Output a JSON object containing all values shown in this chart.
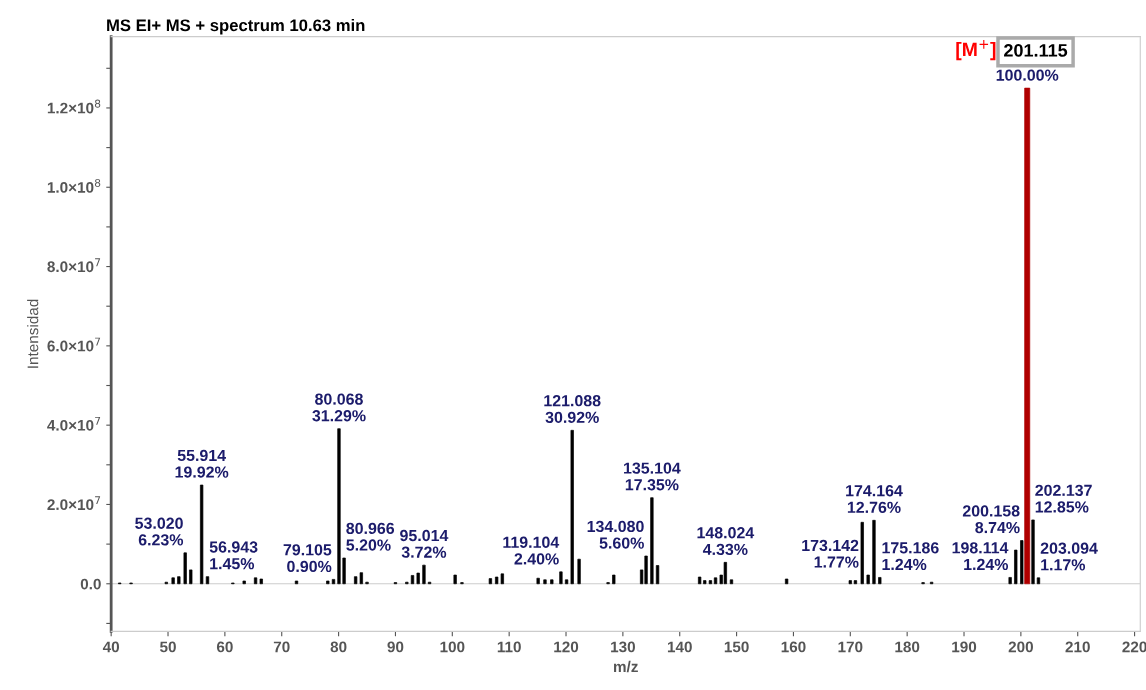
{
  "chart_data": {
    "type": "bar",
    "title": "MS EI+ MS + spectrum 10.63 min",
    "xlabel": "m/z",
    "ylabel": "Intensidad",
    "x": [
      41.5,
      43.5,
      49.7,
      50.9,
      51.9,
      53.02,
      54.0,
      55.914,
      56.943,
      61.4,
      63.4,
      65.4,
      66.4,
      72.6,
      78.1,
      79.105,
      80.068,
      80.966,
      83.0,
      84.0,
      85.0,
      90.0,
      92.0,
      93.0,
      94.0,
      95.014,
      96.0,
      100.5,
      101.7,
      106.7,
      107.8,
      108.8,
      115.1,
      116.3,
      117.5,
      119.104,
      120.1,
      121.088,
      122.3,
      127.4,
      128.4,
      133.3,
      134.08,
      135.104,
      136.1,
      143.5,
      144.4,
      145.4,
      146.3,
      147.3,
      148.024,
      149.1,
      158.8,
      170.0,
      170.9,
      172.1,
      173.142,
      174.164,
      175.186,
      182.8,
      184.3,
      198.114,
      199.1,
      200.158,
      201.115,
      202.137,
      203.094
    ],
    "values": [
      200000,
      200000,
      400000,
      1500000,
      1800000,
      7800000,
      3500000,
      24900000,
      1800000,
      200000,
      700000,
      1500000,
      1200000,
      700000,
      700000,
      1100000,
      39100000,
      6500000,
      1800000,
      2800000,
      400000,
      300000,
      400000,
      2100000,
      2700000,
      4700000,
      400000,
      2200000,
      300000,
      1300000,
      1700000,
      2500000,
      1400000,
      1000000,
      1000000,
      3000000,
      1000000,
      38700000,
      6200000,
      300000,
      2200000,
      3500000,
      7000000,
      21700000,
      4600000,
      1700000,
      800000,
      800000,
      1500000,
      2200000,
      5400000,
      1000000,
      1200000,
      800000,
      800000,
      15500000,
      2200000,
      16000000,
      1600000,
      300000,
      400000,
      1600000,
      8500000,
      10900000,
      125000000,
      16100000,
      1500000
    ],
    "colors": [
      "#000000",
      "#000000",
      "#000000",
      "#000000",
      "#000000",
      "#000000",
      "#000000",
      "#000000",
      "#000000",
      "#000000",
      "#000000",
      "#000000",
      "#000000",
      "#000000",
      "#000000",
      "#000000",
      "#000000",
      "#000000",
      "#000000",
      "#000000",
      "#000000",
      "#000000",
      "#000000",
      "#000000",
      "#000000",
      "#000000",
      "#000000",
      "#000000",
      "#000000",
      "#000000",
      "#000000",
      "#000000",
      "#000000",
      "#000000",
      "#000000",
      "#000000",
      "#000000",
      "#000000",
      "#000000",
      "#000000",
      "#000000",
      "#000000",
      "#000000",
      "#000000",
      "#000000",
      "#000000",
      "#000000",
      "#000000",
      "#000000",
      "#000000",
      "#000000",
      "#000000",
      "#000000",
      "#000000",
      "#000000",
      "#000000",
      "#000000",
      "#000000",
      "#000000",
      "#000000",
      "#000000",
      "#000000",
      "#000000",
      "#000000",
      "#b00000",
      "#000000",
      "#000000"
    ],
    "annotations": [
      {
        "text": "[M$^{+}$]",
        "x": 201.115,
        "y": 125000000
      },
      {
        "text": "201.115",
        "x": 201.115,
        "y": 125000000
      },
      {
        "text": "100.00%",
        "x": 201.115,
        "y": 125000000
      },
      {
        "text": "53.020\n6.23%",
        "x": 53.02,
        "y": 7800000
      },
      {
        "text": "55.914\n19.92%",
        "x": 55.914,
        "y": 24900000
      },
      {
        "text": "56.943\n1.45%",
        "x": 56.943,
        "y": 1800000
      },
      {
        "text": "79.105\n0.90%",
        "x": 79.105,
        "y": 1100000
      },
      {
        "text": "80.068\n31.29%",
        "x": 80.068,
        "y": 39100000
      },
      {
        "text": "80.966\n5.20%",
        "x": 80.966,
        "y": 6500000
      },
      {
        "text": "95.014\n3.72%",
        "x": 95.014,
        "y": 4700000
      },
      {
        "text": "119.104\n2.40%",
        "x": 119.104,
        "y": 3000000
      },
      {
        "text": "121.088\n30.92%",
        "x": 121.088,
        "y": 38700000
      },
      {
        "text": "134.080\n5.60%",
        "x": 134.08,
        "y": 7000000
      },
      {
        "text": "135.104\n17.35%",
        "x": 135.104,
        "y": 21700000
      },
      {
        "text": "148.024\n4.33%",
        "x": 148.024,
        "y": 5400000
      },
      {
        "text": "173.142\n1.77%",
        "x": 173.142,
        "y": 2200000
      },
      {
        "text": "174.164\n12.76%",
        "x": 174.164,
        "y": 16000000
      },
      {
        "text": "175.186\n1.24%",
        "x": 175.186,
        "y": 1600000
      },
      {
        "text": "198.114\n1.24%",
        "x": 198.114,
        "y": 1600000
      },
      {
        "text": "200.158\n8.74%",
        "x": 200.158,
        "y": 10900000
      },
      {
        "text": "202.137\n12.85%",
        "x": 202.137,
        "y": 16100000
      },
      {
        "text": "203.094\n1.17%",
        "x": 203.094,
        "y": 1500000
      }
    ],
    "ref_lines": [
      {
        "axis": "y",
        "value": 0,
        "color": "#cccccc"
      }
    ],
    "xlim": [
      40,
      221
    ],
    "xticks": [
      40,
      50,
      60,
      70,
      80,
      90,
      100,
      110,
      120,
      130,
      140,
      150,
      160,
      170,
      180,
      190,
      200,
      210,
      220
    ],
    "ylim": [
      -12000000,
      138000000
    ],
    "yticks": [
      {
        "value": -10000000,
        "label": null
      },
      {
        "value": 0,
        "label": "0.0"
      },
      {
        "value": 10000000,
        "label": null
      },
      {
        "value": 20000000,
        "label": "2.0×10$^{7}$"
      },
      {
        "value": 30000000,
        "label": null
      },
      {
        "value": 40000000,
        "label": "4.0×10$^{7}$"
      },
      {
        "value": 50000000,
        "label": null
      },
      {
        "value": 60000000,
        "label": "6.0×10$^{7}$"
      },
      {
        "value": 70000000,
        "label": null
      },
      {
        "value": 80000000,
        "label": "8.0×10$^{7}$"
      },
      {
        "value": 90000000,
        "label": null
      },
      {
        "value": 100000000,
        "label": "1.0×10$^{8}$"
      },
      {
        "value": 110000000,
        "label": null
      },
      {
        "value": 120000000,
        "label": "1.2×10$^{8}$"
      },
      {
        "value": 130000000,
        "label": null
      }
    ]
  }
}
